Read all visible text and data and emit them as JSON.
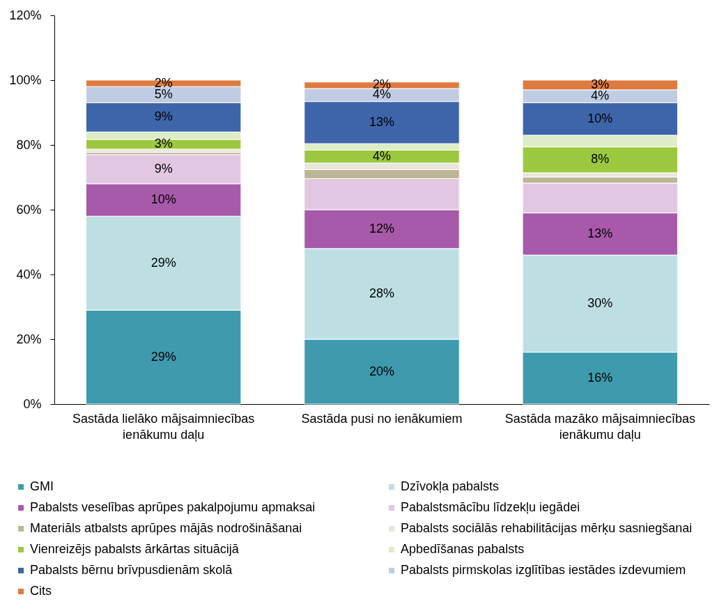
{
  "chart_data": {
    "type": "bar",
    "stacked": true,
    "categories": [
      "Sastāda lielāko mājsaimniecības ienākumu daļu",
      "Sastāda pusi no ienākumiem",
      "Sastāda mazāko mājsaimniecības ienākumu daļu"
    ],
    "series": [
      {
        "name": "GMI",
        "color": "#3f9aae",
        "values": [
          29,
          20,
          16
        ],
        "value_labels": [
          "29%",
          "20%",
          "16%"
        ]
      },
      {
        "name": "Dzīvokļa pabalsts",
        "color": "#bddfe3",
        "values": [
          29,
          28,
          30
        ],
        "value_labels": [
          "29%",
          "28%",
          "30%"
        ]
      },
      {
        "name": "Pabalsts veselības aprūpes pakalpojumu apmaksai",
        "color": "#a75aa9",
        "values": [
          10,
          12,
          13
        ],
        "value_labels": [
          "10%",
          "12%",
          "13%"
        ]
      },
      {
        "name": "Pabalstsmācību līdzekļu iegādei",
        "color": "#e2c7e2",
        "values": [
          9,
          9.6,
          9.2
        ],
        "value_labels": [
          "9%",
          null,
          null
        ]
      },
      {
        "name": "Materiāls atbalsts aprūpes mājās nodrošināšanai",
        "color": "#bcb595",
        "values": [
          0.7,
          2.8,
          1.9
        ],
        "value_labels": [
          null,
          null,
          null
        ]
      },
      {
        "name": "Pabalsts sociālās rehabilitācijas mērķu sasniegšanai",
        "color": "#e8e6db",
        "values": [
          1.0,
          2.0,
          1.3
        ],
        "value_labels": [
          null,
          null,
          null
        ]
      },
      {
        "name": "Vienreizējs pabalsts ārkārtas situācijā",
        "color": "#9cc83f",
        "values": [
          3,
          4,
          8
        ],
        "value_labels": [
          "3%",
          "4%",
          "8%"
        ]
      },
      {
        "name": "Apbedīšanas pabalsts",
        "color": "#ddedc5",
        "values": [
          2.3,
          2.0,
          3.6
        ],
        "value_labels": [
          null,
          null,
          null
        ]
      },
      {
        "name": "Pabalsts bērnu brīvpusdienām skolā",
        "color": "#3e65a9",
        "values": [
          9,
          13,
          10
        ],
        "value_labels": [
          "9%",
          "13%",
          "10%"
        ]
      },
      {
        "name": "Pabalsts pirmskolas izglītības iestādes izdevumiem",
        "color": "#c0cce3",
        "values": [
          5,
          4,
          4
        ],
        "value_labels": [
          "5%",
          "4%",
          "4%"
        ]
      },
      {
        "name": "Cits",
        "color": "#dd7b40",
        "values": [
          2,
          2,
          3
        ],
        "value_labels": [
          "2%",
          "2%",
          "3%"
        ]
      }
    ],
    "ylim": [
      0,
      120
    ],
    "yticks": [
      {
        "value": 0,
        "label": "0%"
      },
      {
        "value": 20,
        "label": "20%"
      },
      {
        "value": 40,
        "label": "40%"
      },
      {
        "value": 60,
        "label": "60%"
      },
      {
        "value": 80,
        "label": "80%"
      },
      {
        "value": 100,
        "label": "100%"
      },
      {
        "value": 120,
        "label": "120%"
      }
    ],
    "legend": "bottom"
  }
}
